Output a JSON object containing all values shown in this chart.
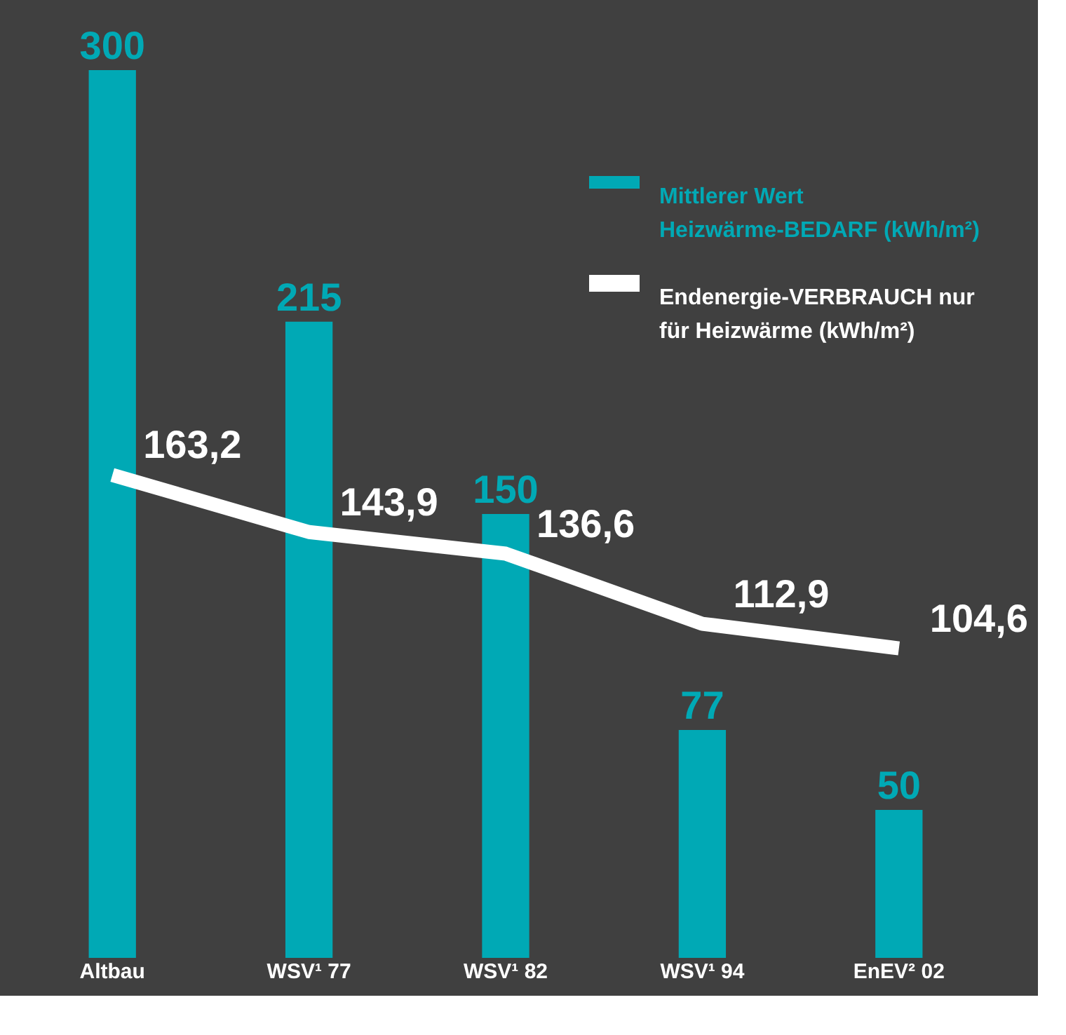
{
  "chart_data": {
    "type": "bar",
    "categories": [
      "Altbau",
      "WSV¹ 77",
      "WSV¹ 82",
      "WSV¹ 94",
      "EnEV² 02"
    ],
    "series": [
      {
        "name": "Mittlerer Wert Heizwärme-BEDARF (kWh/m²)",
        "color": "#00a9b5",
        "values": [
          300,
          215,
          150,
          77,
          50
        ],
        "value_labels": [
          "300",
          "215",
          "150",
          "77",
          "50"
        ]
      },
      {
        "name": "Endenergie-VERBRAUCH nur für Heizwärme (kWh/m²)",
        "type": "line",
        "color": "#ffffff",
        "values": [
          163.2,
          143.9,
          136.6,
          112.9,
          104.6
        ],
        "value_labels": [
          "163,2",
          "143,9",
          "136,6",
          "112,9",
          "104,6"
        ]
      }
    ],
    "ylim": [
      0,
      300
    ],
    "tick_labels": "x",
    "grid": false,
    "legend": "top right"
  }
}
